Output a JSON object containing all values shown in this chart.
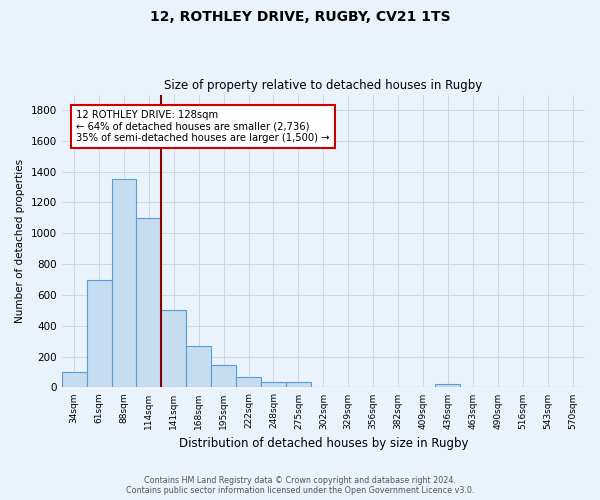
{
  "title": "12, ROTHLEY DRIVE, RUGBY, CV21 1TS",
  "subtitle": "Size of property relative to detached houses in Rugby",
  "xlabel": "Distribution of detached houses by size in Rugby",
  "ylabel": "Number of detached properties",
  "footer_line1": "Contains HM Land Registry data © Crown copyright and database right 2024.",
  "footer_line2": "Contains public sector information licensed under the Open Government Licence v3.0.",
  "categories": [
    "34sqm",
    "61sqm",
    "88sqm",
    "114sqm",
    "141sqm",
    "168sqm",
    "195sqm",
    "222sqm",
    "248sqm",
    "275sqm",
    "302sqm",
    "329sqm",
    "356sqm",
    "382sqm",
    "409sqm",
    "436sqm",
    "463sqm",
    "490sqm",
    "516sqm",
    "543sqm",
    "570sqm"
  ],
  "values": [
    100,
    700,
    1350,
    1100,
    500,
    270,
    143,
    70,
    35,
    35,
    5,
    5,
    5,
    5,
    5,
    20,
    5,
    0,
    0,
    0,
    0
  ],
  "bar_color": "#c6dcf0",
  "bar_edge_color": "#5b9bd5",
  "background_color": "#eaf3fb",
  "grid_color": "#d0d8e0",
  "vline_x": 3.5,
  "vline_color": "#8b0000",
  "annotation_text": "12 ROTHLEY DRIVE: 128sqm\n← 64% of detached houses are smaller (2,736)\n35% of semi-detached houses are larger (1,500) →",
  "annotation_box_color": "#ffffff",
  "annotation_border_color": "#cc0000",
  "ylim": [
    0,
    1900
  ],
  "yticks": [
    0,
    200,
    400,
    600,
    800,
    1000,
    1200,
    1400,
    1600,
    1800
  ]
}
